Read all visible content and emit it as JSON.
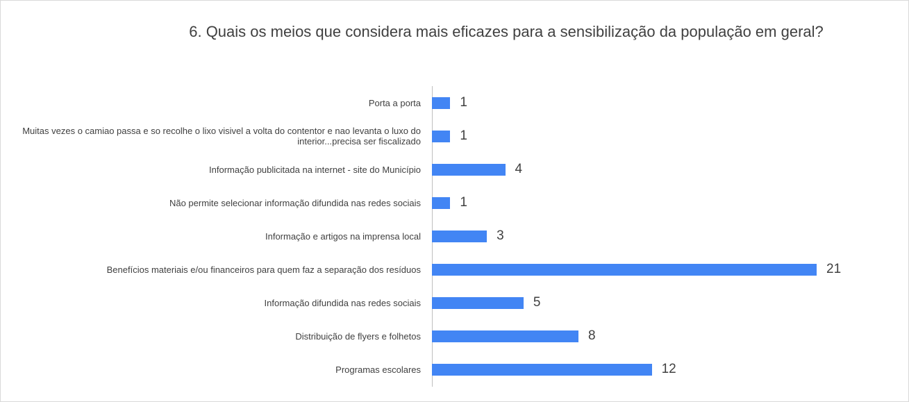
{
  "chart_data": {
    "type": "bar",
    "orientation": "horizontal",
    "title": "6. Quais os meios que considera mais eficazes para a sensibilização da população em geral?",
    "categories": [
      "Porta a porta",
      "Muitas vezes o camiao passa e so recolhe o lixo visivel a volta do contentor e nao levanta o luxo do interior...precisa ser fiscalizado",
      "Informação publicitada na internet - site do Município",
      "Não permite selecionar informação difundida nas redes sociais",
      "Informação e artigos na imprensa local",
      "Benefícios materiais e/ou financeiros para quem faz a separação dos resíduos",
      "Informação difundida nas redes sociais",
      "Distribuição de flyers e folhetos",
      "Programas escolares"
    ],
    "values": [
      1,
      1,
      4,
      1,
      3,
      21,
      5,
      8,
      12
    ],
    "color": "#4285f4",
    "xlim": [
      0,
      21
    ]
  }
}
